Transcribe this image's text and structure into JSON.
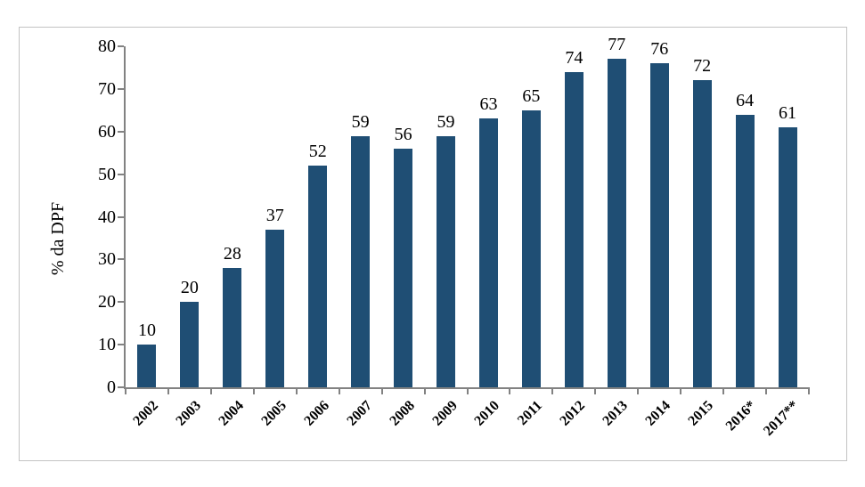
{
  "chart_data": {
    "type": "bar",
    "title": "",
    "xlabel": "",
    "ylabel": "% da DPF",
    "categories": [
      "2002",
      "2003",
      "2004",
      "2005",
      "2006",
      "2007",
      "2008",
      "2009",
      "2010",
      "2011",
      "2012",
      "2013",
      "2014",
      "2015",
      "2016*",
      "2017**"
    ],
    "values": [
      10,
      20,
      28,
      37,
      52,
      59,
      56,
      59,
      63,
      65,
      74,
      77,
      76,
      72,
      64,
      61
    ],
    "value_labels": [
      "10",
      "20",
      "28",
      "37",
      "52",
      "59",
      "56",
      "59",
      "63",
      "65",
      "74",
      "77",
      "76",
      "72",
      "64",
      "61"
    ],
    "yticks": [
      0,
      10,
      20,
      30,
      40,
      50,
      60,
      70,
      80
    ],
    "ylim": [
      0,
      80
    ],
    "grid": false,
    "legend": null,
    "data_labels": true,
    "colors": {
      "bar": "#1f4e74",
      "axis": "#828282",
      "text": "#000000",
      "border": "#c3c3c3",
      "background": "#ffffff"
    }
  }
}
